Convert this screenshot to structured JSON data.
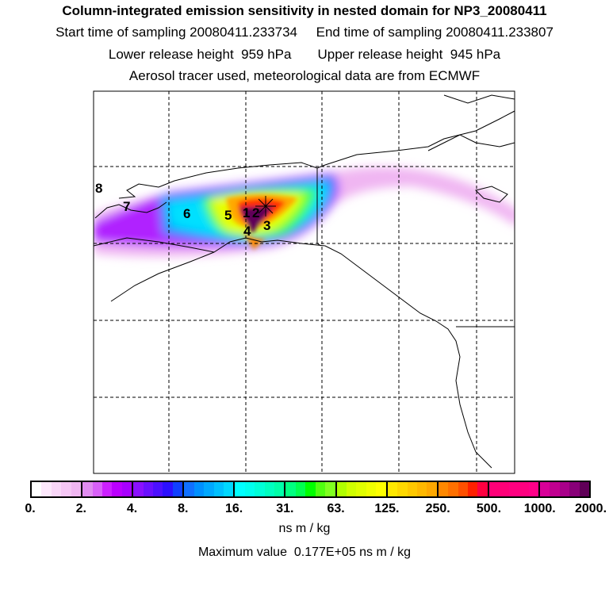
{
  "header": {
    "title": "Column-integrated emission sensitivity in nested domain for NP3_20080411",
    "line2": "Start time of sampling 20080411.233734     End time of sampling 20080411.233807",
    "line3": "Lower release height  959 hPa       Upper release height  945 hPa",
    "line4": "Aerosol tracer used, meteorological data are from ECMWF"
  },
  "map": {
    "labels": [
      "1",
      "2",
      "3",
      "4",
      "5",
      "6",
      "7",
      "8"
    ],
    "release_marker": "star-icon"
  },
  "colorbar": {
    "ticks": [
      "0.",
      "2.",
      "4.",
      "8.",
      "16.",
      "31.",
      "63.",
      "125.",
      "250.",
      "500.",
      "1000.",
      "2000."
    ],
    "colors": [
      [
        "#ffffff",
        "#fde8fc",
        "#f9d6f8",
        "#f5c6f5",
        "#f0b6f2"
      ],
      [
        "#e08cf0",
        "#d860f8",
        "#cc20ff",
        "#bb00ff",
        "#a800ff"
      ],
      [
        "#8a10ff",
        "#6a10ff",
        "#4c10ff",
        "#2c10ff",
        "#1040ff"
      ],
      [
        "#1070ff",
        "#0090ff",
        "#00a8ff",
        "#00c0ff",
        "#00d8ff"
      ],
      [
        "#00ffff",
        "#00ffee",
        "#00ffd8",
        "#00ffc0",
        "#00ffa8"
      ],
      [
        "#00ff80",
        "#00ff50",
        "#00ff00",
        "#50ff10",
        "#80ff20"
      ],
      [
        "#b0ff00",
        "#d0ff00",
        "#e0ff00",
        "#f0ff00",
        "#ffff00"
      ],
      [
        "#ffe800",
        "#ffd800",
        "#ffc800",
        "#ffb800",
        "#ffa800"
      ],
      [
        "#ff8800",
        "#ff7000",
        "#ff5000",
        "#ff2000",
        "#ff0040"
      ],
      [
        "#ff0078",
        "#ff0078",
        "#ff0080",
        "#ff0080",
        "#ff0088"
      ],
      [
        "#d80098",
        "#c00090",
        "#a8008a",
        "#880078",
        "#600058"
      ]
    ],
    "units": "ns m / kg",
    "max_value": "Maximum value  0.177E+05 ns m / kg"
  }
}
